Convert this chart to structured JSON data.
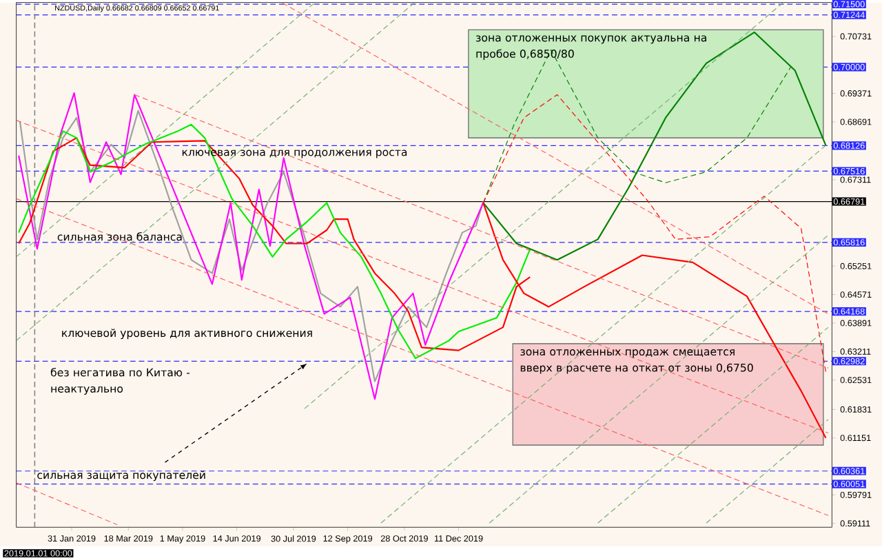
{
  "chart_data": {
    "type": "line",
    "title": "NZDUSD,Daily  0.66682 0.66809 0.66652 0.66791",
    "xlim": [
      "2018-12-17",
      "2020-10-09"
    ],
    "ylim": [
      0.5902,
      0.7154
    ],
    "xticks": [
      {
        "value": "2019-01-31",
        "label": "31 Jan 2019"
      },
      {
        "value": "2019-03-18",
        "label": "18 Mar 2019"
      },
      {
        "value": "2019-05-01",
        "label": "1 May 2019"
      },
      {
        "value": "2019-06-14",
        "label": "14 Jun 2019"
      },
      {
        "value": "2019-07-30",
        "label": "30 Jul 2019"
      },
      {
        "value": "2019-09-12",
        "label": "12 Sep 2019"
      },
      {
        "value": "2019-10-28",
        "label": "28 Oct 2019"
      },
      {
        "value": "2019-12-11",
        "label": "11 Dec 2019"
      }
    ],
    "yticks": [
      0.59111,
      0.59791,
      0.61151,
      0.61831,
      0.62531,
      0.63211,
      0.63891,
      0.64571,
      0.65251,
      0.67311,
      0.68691,
      0.69371,
      0.70731
    ],
    "grid": false,
    "marker": "none",
    "series": [
      {
        "color": "#a0a0a0",
        "x": [
          "2018-12-20",
          "2018-12-28",
          "2019-01-03",
          "2019-01-13",
          "2019-01-24",
          "2019-02-04",
          "2019-02-15",
          "2019-03-04",
          "2019-03-15",
          "2019-03-26",
          "2019-04-11",
          "2019-04-22",
          "2019-05-08",
          "2019-05-25",
          "2019-06-08",
          "2019-06-18",
          "2019-07-08",
          "2019-07-22",
          "2019-08-07",
          "2019-08-21",
          "2019-09-06",
          "2019-09-20",
          "2019-10-04",
          "2019-10-18",
          "2019-10-31",
          "2019-11-15",
          "2019-12-01",
          "2019-12-14",
          "2019-12-25",
          "2019-12-31"
        ],
        "values": [
          0.687,
          0.6702,
          0.6589,
          0.6734,
          0.6831,
          0.6879,
          0.675,
          0.6815,
          0.6783,
          0.6896,
          0.6766,
          0.667,
          0.654,
          0.6508,
          0.6637,
          0.6515,
          0.667,
          0.675,
          0.6605,
          0.646,
          0.6428,
          0.6476,
          0.625,
          0.6347,
          0.6428,
          0.6379,
          0.6508,
          0.6605,
          0.6621,
          0.6679
        ]
      },
      {
        "color": "#ff00ff",
        "x": [
          "2018-12-19",
          "2019-01-03",
          "2019-01-22",
          "2019-02-02",
          "2019-02-15",
          "2019-02-28",
          "2019-03-12",
          "2019-03-23",
          "2019-05-25",
          "2019-06-09",
          "2019-06-18",
          "2019-07-02",
          "2019-07-11",
          "2019-07-22",
          "2019-08-08",
          "2019-08-24",
          "2019-09-14",
          "2019-10-04",
          "2019-10-18",
          "2019-11-04",
          "2019-11-14",
          "2019-12-03",
          "2019-12-31"
        ],
        "values": [
          0.6789,
          0.6566,
          0.6841,
          0.6938,
          0.6725,
          0.6821,
          0.6744,
          0.6934,
          0.6482,
          0.6676,
          0.6492,
          0.6708,
          0.6573,
          0.6783,
          0.6573,
          0.6411,
          0.645,
          0.6208,
          0.6402,
          0.646,
          0.6337,
          0.6486,
          0.6676
        ]
      },
      {
        "color": "#ff0000",
        "x": [
          "2018-12-19",
          "2018-12-28",
          "2019-01-16",
          "2019-02-04",
          "2019-02-15",
          "2019-03-15",
          "2019-04-06",
          "2019-05-19",
          "2019-06-16",
          "2019-06-27",
          "2019-07-13",
          "2019-07-24",
          "2019-08-10",
          "2019-08-26",
          "2019-09-01",
          "2019-09-12",
          "2019-09-17",
          "2019-10-04",
          "2019-10-20",
          "2019-10-31",
          "2019-11-11",
          "2019-12-11",
          "2020-01-16",
          "2020-01-27",
          "2020-02-07"
        ],
        "values": [
          0.6579,
          0.6628,
          0.6799,
          0.6831,
          0.6766,
          0.676,
          0.6821,
          0.6824,
          0.6734,
          0.667,
          0.6621,
          0.6579,
          0.6579,
          0.6611,
          0.6637,
          0.6637,
          0.6589,
          0.6508,
          0.646,
          0.6418,
          0.6331,
          0.6324,
          0.6379,
          0.6476,
          0.6499
        ]
      },
      {
        "color": "#00ee00",
        "x": [
          "2018-12-19",
          "2018-12-28",
          "2019-01-24",
          "2019-02-04",
          "2019-02-15",
          "2019-03-04",
          "2019-03-31",
          "2019-04-27",
          "2019-05-08",
          "2019-05-19",
          "2019-06-10",
          "2019-06-27",
          "2019-07-13",
          "2019-07-24",
          "2019-08-10",
          "2019-08-26",
          "2019-09-06",
          "2019-09-23",
          "2019-10-09",
          "2019-10-23",
          "2019-11-06",
          "2019-12-03",
          "2019-12-11",
          "2020-01-11",
          "2020-01-27",
          "2020-02-07"
        ],
        "values": [
          0.6605,
          0.667,
          0.6847,
          0.6831,
          0.675,
          0.6773,
          0.6815,
          0.6847,
          0.6863,
          0.6831,
          0.6686,
          0.6621,
          0.6547,
          0.6589,
          0.6631,
          0.6676,
          0.6605,
          0.6547,
          0.646,
          0.6373,
          0.6305,
          0.6347,
          0.6369,
          0.6402,
          0.6486,
          0.6566
        ]
      },
      {
        "color": "#008000",
        "x": [
          "2019-12-31",
          "2020-01-27",
          "2020-02-29",
          "2020-04-02",
          "2020-04-27",
          "2020-05-27",
          "2020-06-29",
          "2020-08-07",
          "2020-09-09",
          "2020-10-04"
        ],
        "values": [
          0.6676,
          0.6579,
          0.654,
          0.6589,
          0.6712,
          0.6879,
          0.7009,
          0.7083,
          0.6992,
          0.6813
        ]
      },
      {
        "color": "#008000",
        "line_style": "dashed",
        "x": [
          "2019-12-31",
          "2020-01-25",
          "2020-02-24",
          "2020-04-02",
          "2020-04-30",
          "2020-05-27",
          "2020-06-29",
          "2020-08-01",
          "2020-09-06"
        ],
        "values": [
          0.6676,
          0.6863,
          0.7041,
          0.6831,
          0.675,
          0.6724,
          0.675,
          0.6831,
          0.7002
        ]
      },
      {
        "color": "#ff0000",
        "x": [
          "2019-12-31",
          "2020-01-16",
          "2020-02-02",
          "2020-02-22",
          "2020-03-22",
          "2020-05-08",
          "2020-06-18",
          "2020-08-01",
          "2020-08-26",
          "2020-09-14",
          "2020-10-04"
        ],
        "values": [
          0.6676,
          0.654,
          0.646,
          0.6428,
          0.6476,
          0.6551,
          0.6534,
          0.6453,
          0.6324,
          0.6227,
          0.6115
        ]
      },
      {
        "color": "#ff0000",
        "line_style": "dashed",
        "x": [
          "2019-12-31",
          "2020-02-02",
          "2020-02-29",
          "2020-03-30",
          "2020-05-13",
          "2020-06-04",
          "2020-07-02",
          "2020-08-15",
          "2020-09-14",
          "2020-10-04"
        ],
        "values": [
          0.6676,
          0.6879,
          0.6934,
          0.6831,
          0.6679,
          0.6589,
          0.6595,
          0.6692,
          0.6615,
          0.6273
        ]
      },
      {
        "color": "#ff6060",
        "line_style": "dashed",
        "x": [
          "2019-03-23",
          "2020-10-06"
        ],
        "values": [
          0.6934,
          0.6282
        ]
      },
      {
        "color": "#ff6060",
        "line_style": "dashed",
        "x": [
          "2018-12-17",
          "2020-10-06"
        ],
        "values": [
          0.6873,
          0.6127
        ]
      },
      {
        "color": "#ff6060",
        "line_style": "dashed",
        "x": [
          "2018-12-17",
          "2020-10-06"
        ],
        "values": [
          0.6686,
          0.593
        ]
      },
      {
        "color": "#ff6060",
        "line_style": "dashed",
        "x": [
          "2019-07-21",
          "2020-10-06"
        ],
        "values": [
          0.7153,
          0.6411
        ]
      },
      {
        "color": "#ff6060",
        "line_style": "dashed",
        "x": [
          "2018-12-17",
          "2019-03-09"
        ],
        "values": [
          0.6008,
          0.5908
        ]
      },
      {
        "color": "#70b070",
        "line_style": "dashed",
        "x": [
          "2018-12-17",
          "2019-08-16"
        ],
        "values": [
          0.6547,
          0.7153
        ]
      },
      {
        "color": "#70b070",
        "line_style": "dashed",
        "x": [
          "2018-12-17",
          "2019-11-05"
        ],
        "values": [
          0.6347,
          0.7153
        ]
      },
      {
        "color": "#70b070",
        "line_style": "dashed",
        "x": [
          "2019-08-08",
          "2020-08-30"
        ],
        "values": [
          0.6185,
          0.7153
        ]
      },
      {
        "color": "#70b070",
        "line_style": "dashed",
        "x": [
          "2019-10-09",
          "2020-10-06"
        ],
        "values": [
          0.5912,
          0.6818
        ]
      },
      {
        "color": "#70b070",
        "line_style": "dashed",
        "x": [
          "2020-01-05",
          "2020-10-06"
        ],
        "values": [
          0.5912,
          0.6599
        ]
      },
      {
        "color": "#70b070",
        "line_style": "dashed",
        "x": [
          "2020-04-02",
          "2020-10-06"
        ],
        "values": [
          0.5912,
          0.6379
        ]
      },
      {
        "color": "#70b070",
        "line_style": "dashed",
        "x": [
          "2020-06-29",
          "2020-10-06"
        ],
        "values": [
          0.5912,
          0.6159
        ]
      },
      {
        "type": "area",
        "color": "#c6ecc0",
        "x": [
          "2019-12-19",
          "2020-10-02",
          "2020-10-02",
          "2019-12-19",
          "2019-12-19"
        ],
        "values": [
          0.7089,
          0.7089,
          0.6831,
          0.6831,
          0.7089
        ]
      },
      {
        "type": "area",
        "color": "#f8cccc",
        "x": [
          "2020-01-24",
          "2020-10-02",
          "2020-10-02",
          "2020-01-24",
          "2020-01-24"
        ],
        "values": [
          0.634,
          0.634,
          0.6098,
          0.6098,
          0.634
        ]
      }
    ],
    "ref_lines": [
      {
        "axis": "y",
        "value": 0.715,
        "label": "0.71500",
        "color": "#2a2aff",
        "line_style": "dashed"
      },
      {
        "axis": "y",
        "value": 0.71244,
        "label": "0.71244",
        "color": "#2a2aff",
        "line_style": "dashed"
      },
      {
        "axis": "y",
        "value": 0.7,
        "label": "0.70000",
        "color": "#2a2aff",
        "line_style": "dashed"
      },
      {
        "axis": "y",
        "value": 0.68126,
        "label": "0.68126",
        "color": "#2a2aff",
        "line_style": "dashed"
      },
      {
        "axis": "y",
        "value": 0.67516,
        "label": "0.67516",
        "color": "#2a2aff",
        "line_style": "dashed"
      },
      {
        "axis": "y",
        "value": 0.66791,
        "label": "0.66791",
        "color": "#000000",
        "line_style": "solid"
      },
      {
        "axis": "y",
        "value": 0.65816,
        "label": "0.65816",
        "color": "#2a2aff",
        "line_style": "dashed"
      },
      {
        "axis": "y",
        "value": 0.64168,
        "label": "0.64168",
        "color": "#2a2aff",
        "line_style": "dashed"
      },
      {
        "axis": "y",
        "value": 0.62982,
        "label": "0.62982",
        "color": "#2a2aff",
        "line_style": "dashed"
      },
      {
        "axis": "y",
        "value": 0.60361,
        "label": "0.60361",
        "color": "#2a2aff",
        "line_style": "dashed"
      },
      {
        "axis": "y",
        "value": 0.60051,
        "label": "0.60051",
        "color": "#2a2aff",
        "line_style": "dashed"
      },
      {
        "axis": "x",
        "value": "2019-01-01",
        "color": "#808080",
        "line_style": "dashed"
      }
    ],
    "annotations": [
      "2019.01.01 00:00",
      {
        "text": "зона отложенных покупок актуальна на пробое 0,6850/80",
        "x": "2019-12-19",
        "y": 0.7089
      },
      "ключевая зона для продолжения роста",
      "сильная зона баланса",
      "ключевой уровень для активного снижения",
      "без негатива по Китаю - неактуально",
      {
        "text": "зона отложенных продаж смещается вверх в расчете на откат от зоны 0,6750",
        "x": "2020-01-24",
        "y": 0.634
      },
      "сильная защита покупателей"
    ]
  }
}
